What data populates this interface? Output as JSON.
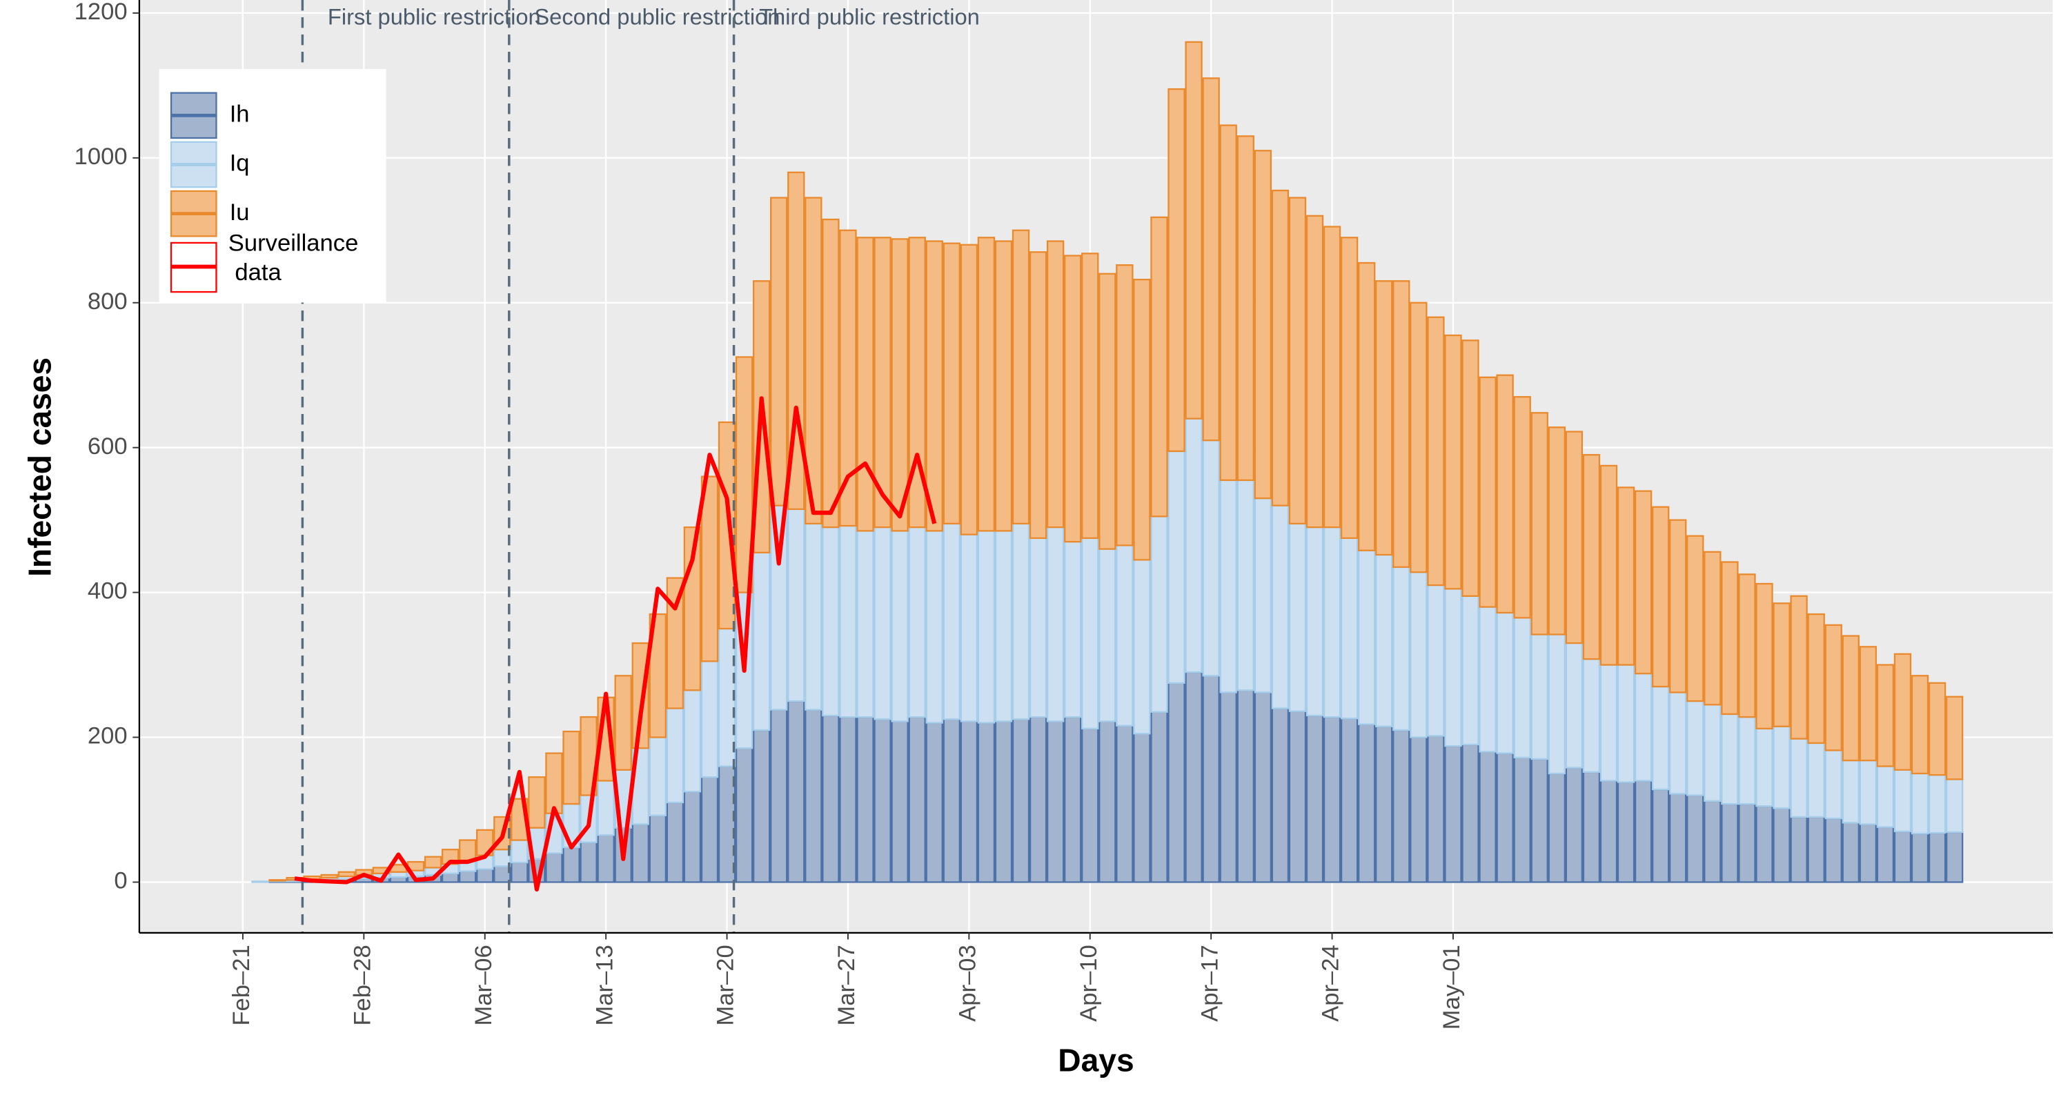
{
  "chart_data": {
    "type": "bar",
    "stacked": true,
    "xlabel": "Days",
    "ylabel": "Infected cases",
    "categories": [
      "Feb–21",
      null,
      null,
      null,
      null,
      null,
      null,
      "Feb–28",
      null,
      null,
      null,
      null,
      null,
      null,
      "Mar–06",
      null,
      null,
      null,
      null,
      null,
      null,
      "Mar–13",
      null,
      null,
      null,
      null,
      null,
      null,
      "Mar–20",
      null,
      null,
      null,
      null,
      null,
      null,
      "Mar–27",
      null,
      null,
      null,
      null,
      null,
      null,
      "Apr–03",
      null,
      null,
      null,
      null,
      null,
      null,
      "Apr–10",
      null,
      null,
      null,
      null,
      null,
      null,
      "Apr–17",
      null,
      null,
      null,
      null,
      null,
      null,
      "Apr–24",
      null,
      null,
      null,
      null,
      null,
      null,
      "May–01",
      null,
      null,
      null,
      null,
      null,
      null,
      null,
      null,
      null,
      null,
      null,
      null,
      null,
      null,
      null,
      null,
      null,
      null,
      null,
      null,
      null,
      null,
      null,
      null,
      null,
      null,
      null,
      null,
      null
    ],
    "series": [
      {
        "name": "Ih",
        "type": "bar",
        "color": "#a3b4cf",
        "edgecolor": "#4c72a8",
        "values": [
          0,
          0,
          1,
          1,
          2,
          3,
          4,
          5,
          6,
          7,
          8,
          10,
          12,
          15,
          18,
          22,
          27,
          32,
          40,
          48,
          55,
          65,
          75,
          80,
          92,
          110,
          125,
          145,
          160,
          185,
          210,
          238,
          250,
          238,
          230,
          228,
          228,
          225,
          222,
          228,
          220,
          225,
          222,
          220,
          222,
          225,
          228,
          222,
          228,
          212,
          222,
          216,
          205,
          235,
          275,
          290,
          285,
          262,
          265,
          262,
          240,
          236,
          230,
          228,
          226,
          218,
          215,
          210,
          200,
          202,
          188,
          190,
          180,
          178,
          172,
          170,
          150,
          158,
          152,
          140,
          138,
          140,
          128,
          122,
          120,
          112,
          108,
          108,
          105,
          102,
          90,
          90,
          88,
          82,
          80,
          76,
          70,
          67,
          68,
          69
        ]
      },
      {
        "name": "Iq",
        "type": "bar",
        "color": "#cce0f2",
        "edgecolor": "#a6cde9",
        "values": [
          0,
          1,
          1,
          2,
          2,
          3,
          4,
          5,
          6,
          7,
          8,
          10,
          13,
          15,
          19,
          23,
          31,
          43,
          55,
          60,
          65,
          75,
          80,
          105,
          108,
          130,
          140,
          160,
          190,
          215,
          245,
          282,
          265,
          257,
          260,
          264,
          257,
          265,
          263,
          262,
          265,
          270,
          258,
          265,
          263,
          270,
          247,
          268,
          242,
          263,
          238,
          249,
          240,
          270,
          320,
          350,
          325,
          293,
          290,
          268,
          280,
          259,
          260,
          262,
          249,
          240,
          237,
          225,
          228,
          208,
          217,
          205,
          200,
          194,
          193,
          172,
          192,
          172,
          156,
          160,
          162,
          148,
          142,
          140,
          130,
          133,
          124,
          120,
          107,
          113,
          108,
          102,
          94,
          86,
          88,
          84,
          85,
          83,
          80,
          73
        ]
      },
      {
        "name": "Iu",
        "type": "bar",
        "color": "#f5bb84",
        "edgecolor": "#e98a2f",
        "values": [
          0,
          0,
          1,
          3,
          4,
          4,
          6,
          7,
          8,
          10,
          12,
          15,
          20,
          28,
          35,
          45,
          57,
          70,
          83,
          100,
          108,
          115,
          130,
          145,
          170,
          180,
          225,
          255,
          285,
          325,
          375,
          425,
          465,
          450,
          425,
          408,
          405,
          400,
          403,
          400,
          400,
          387,
          400,
          405,
          400,
          405,
          395,
          395,
          395,
          393,
          380,
          387,
          387,
          413,
          500,
          520,
          500,
          490,
          475,
          480,
          435,
          450,
          430,
          415,
          415,
          397,
          378,
          395,
          372,
          370,
          350,
          353,
          317,
          328,
          305,
          306,
          286,
          292,
          282,
          275,
          245,
          252,
          248,
          238,
          228,
          211,
          210,
          197,
          200,
          170,
          197,
          178,
          173,
          172,
          157,
          140,
          160,
          135,
          127,
          114
        ]
      },
      {
        "name": "Surveillance\n data",
        "type": "line",
        "color": "#ff0000",
        "values": [
          null,
          null,
          null,
          5,
          2,
          1,
          0,
          10,
          2,
          38,
          3,
          5,
          28,
          28,
          35,
          62,
          152,
          -10,
          102,
          48,
          78,
          260,
          32,
          230,
          405,
          378,
          445,
          590,
          530,
          292,
          668,
          440,
          655,
          510,
          510,
          560,
          578,
          535,
          505,
          590,
          495,
          null,
          null,
          null,
          null,
          null,
          null,
          null,
          null,
          null,
          null,
          null,
          null,
          null,
          null,
          null,
          null,
          null,
          null,
          null,
          null,
          null,
          null,
          null,
          null,
          null,
          null,
          null,
          null,
          null,
          null,
          null,
          null,
          null,
          null,
          null,
          null,
          null,
          null,
          null,
          null,
          null,
          null,
          null,
          null,
          null,
          null,
          null,
          null,
          null,
          null,
          null,
          null,
          null,
          null,
          null,
          null,
          null,
          null,
          null
        ]
      }
    ],
    "annotations": [
      {
        "text": "First public restriction",
        "x": 3.45
      },
      {
        "text": "Second public restriction",
        "x": 15.4
      },
      {
        "text": "Third public restriction",
        "x": 28.4
      }
    ],
    "ylim": [
      -70,
      1218
    ],
    "yticks": [
      0,
      200,
      400,
      600,
      800,
      1000,
      1200
    ],
    "grid": true,
    "legend": "upper left"
  }
}
